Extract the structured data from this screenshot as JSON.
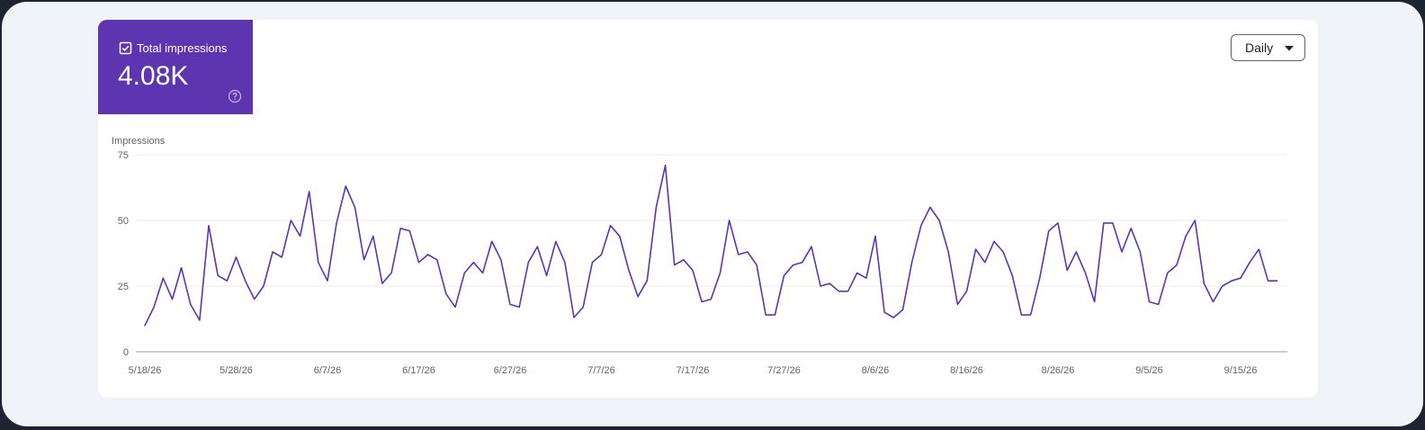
{
  "metric": {
    "label": "Total impressions",
    "value": "4.08K",
    "checked": true,
    "color": "#5e35b1"
  },
  "controls": {
    "granularity": "Daily"
  },
  "chart_data": {
    "type": "line",
    "ylabel": "Impressions",
    "ylim": [
      0,
      75
    ],
    "yticks": [
      "0",
      "25",
      "50",
      "75"
    ],
    "grid": true,
    "x_start": "2026-05-18",
    "xtick_labels": [
      "5/18/26",
      "5/28/26",
      "6/7/26",
      "6/17/26",
      "6/27/26",
      "7/7/26",
      "7/17/26",
      "7/27/26",
      "8/6/26",
      "8/16/26",
      "8/26/26",
      "9/5/26",
      "9/15/26"
    ],
    "series": [
      {
        "name": "Impressions",
        "color": "#5e35b1",
        "values": [
          10,
          17,
          28,
          20,
          32,
          18,
          12,
          48,
          29,
          27,
          36,
          27,
          20,
          25,
          38,
          36,
          50,
          44,
          61,
          34,
          27,
          49,
          63,
          55,
          35,
          44,
          26,
          30,
          47,
          46,
          34,
          37,
          35,
          22,
          17,
          30,
          34,
          30,
          42,
          35,
          18,
          17,
          34,
          40,
          29,
          42,
          34,
          13,
          17,
          34,
          37,
          48,
          44,
          31,
          21,
          27,
          55,
          71,
          33,
          35,
          31,
          19,
          20,
          30,
          50,
          37,
          38,
          33,
          14,
          14,
          29,
          33,
          34,
          40,
          25,
          26,
          23,
          23,
          30,
          28,
          44,
          15,
          13,
          16,
          34,
          48,
          55,
          50,
          38,
          18,
          23,
          39,
          34,
          42,
          38,
          29,
          14,
          14,
          28,
          46,
          49,
          31,
          38,
          30,
          19,
          49,
          49,
          38,
          47,
          38,
          19,
          18,
          30,
          33,
          44,
          50,
          26,
          19,
          25,
          27,
          28,
          34,
          39,
          27,
          27
        ]
      }
    ]
  }
}
